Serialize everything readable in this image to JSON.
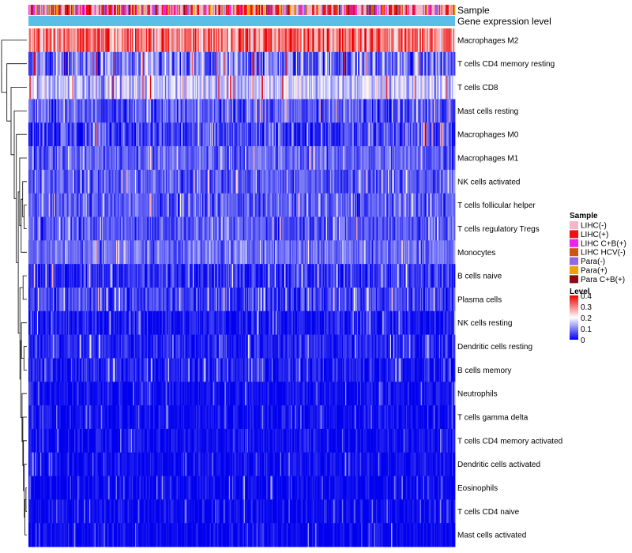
{
  "chart_data": {
    "type": "heatmap",
    "title": "",
    "annotations": [
      {
        "name": "Sample",
        "label": "Sample"
      },
      {
        "name": "Gene expression level",
        "label": "Gene expression level",
        "color": "#5bbee6"
      }
    ],
    "rows": [
      {
        "name": "Macrophages M2",
        "mean": 0.3,
        "spread": 0.09
      },
      {
        "name": "T cells CD4 memory resting",
        "mean": 0.09,
        "spread": 0.09
      },
      {
        "name": "T cells CD8",
        "mean": 0.16,
        "spread": 0.07
      },
      {
        "name": "Mast cells resting",
        "mean": 0.07,
        "spread": 0.06
      },
      {
        "name": "Macrophages M0",
        "mean": 0.05,
        "spread": 0.07
      },
      {
        "name": "Macrophages M1",
        "mean": 0.08,
        "spread": 0.05
      },
      {
        "name": "NK cells activated",
        "mean": 0.07,
        "spread": 0.05
      },
      {
        "name": "T cells follicular helper",
        "mean": 0.07,
        "spread": 0.05
      },
      {
        "name": "T cells regulatory  Tregs",
        "mean": 0.07,
        "spread": 0.05
      },
      {
        "name": "Monocytes",
        "mean": 0.09,
        "spread": 0.05
      },
      {
        "name": "B cells naive",
        "mean": 0.04,
        "spread": 0.05
      },
      {
        "name": "Plasma cells",
        "mean": 0.05,
        "spread": 0.05
      },
      {
        "name": "NK cells resting",
        "mean": 0.02,
        "spread": 0.04
      },
      {
        "name": "Dendritic cells resting",
        "mean": 0.03,
        "spread": 0.04
      },
      {
        "name": "B cells memory",
        "mean": 0.02,
        "spread": 0.04
      },
      {
        "name": "Neutrophils",
        "mean": 0.01,
        "spread": 0.03
      },
      {
        "name": "T cells gamma delta",
        "mean": 0.01,
        "spread": 0.03
      },
      {
        "name": "T cells CD4 memory activated",
        "mean": 0.01,
        "spread": 0.03
      },
      {
        "name": "Dendritic cells activated",
        "mean": 0.01,
        "spread": 0.03
      },
      {
        "name": "Eosinophils",
        "mean": 0.005,
        "spread": 0.03
      },
      {
        "name": "T cells CD4 naive",
        "mean": 0.005,
        "spread": 0.03
      },
      {
        "name": "Mast cells activated",
        "mean": 0.005,
        "spread": 0.03
      }
    ],
    "n_samples": 400,
    "sample_groups": [
      {
        "label": "LIHC(-)",
        "color": "#f6b6c6",
        "weight": 0.36
      },
      {
        "label": "LIHC(+)",
        "color": "#ee1111",
        "weight": 0.28
      },
      {
        "label": "LIHC C+B(+)",
        "color": "#ee22ee",
        "weight": 0.08
      },
      {
        "label": "LIHC HCV(-)",
        "color": "#cc5511",
        "weight": 0.06
      },
      {
        "label": "Para(-)",
        "color": "#9466e0",
        "weight": 0.08
      },
      {
        "label": "Para(+)",
        "color": "#f0a000",
        "weight": 0.08
      },
      {
        "label": "Para C+B(+)",
        "color": "#8a0a1a",
        "weight": 0.06
      }
    ],
    "legend_sample": {
      "title": "Sample",
      "entries": [
        "LIHC(-)",
        "LIHC(+)",
        "LIHC C+B(+)",
        "LIHC HCV(-)",
        "Para(-)",
        "Para(+)",
        "Para C+B(+)"
      ]
    },
    "legend_level": {
      "title": "Level",
      "ticks": [
        "0.4",
        "0.3",
        "0.2",
        "0.1",
        "0"
      ],
      "tick_values": [
        0.4,
        0.3,
        0.2,
        0.1,
        0
      ],
      "colors": [
        "#0000ee",
        "#ffffff",
        "#ee0000"
      ],
      "range": [
        0,
        0.4
      ]
    },
    "dendrogram": {
      "leaf_order": [
        "Macrophages M2",
        "T cells CD4 memory resting",
        "T cells CD8",
        "Mast cells resting",
        "Macrophages M0",
        "Macrophages M1",
        "NK cells activated",
        "T cells follicular helper",
        "T cells regulatory  Tregs",
        "Monocytes",
        "B cells naive",
        "Plasma cells",
        "NK cells resting",
        "Dendritic cells resting",
        "B cells memory",
        "Neutrophils",
        "T cells gamma delta",
        "T cells CD4 memory activated",
        "Dendritic cells activated",
        "Eosinophils",
        "T cells CD4 naive",
        "Mast cells activated"
      ],
      "merges": [
        [
          19,
          20,
          0.4
        ],
        [
          21,
          -1,
          0.9
        ],
        [
          18,
          -2,
          1.2
        ],
        [
          17,
          -3,
          1.6
        ],
        [
          16,
          -4,
          1.9
        ],
        [
          15,
          -5,
          2.3
        ],
        [
          14,
          13,
          1.4
        ],
        [
          -7,
          12,
          2.6
        ],
        [
          -8,
          -6,
          2.9
        ],
        [
          10,
          11,
          1.8
        ],
        [
          -10,
          -9,
          3.3
        ],
        [
          7,
          8,
          1.3
        ],
        [
          6,
          -12,
          2.0
        ],
        [
          9,
          -13,
          2.7
        ],
        [
          5,
          -14,
          3.4
        ],
        [
          -15,
          -11,
          4.1
        ],
        [
          4,
          -16,
          5.0
        ],
        [
          3,
          -17,
          6.0
        ],
        [
          2,
          -18,
          7.5
        ],
        [
          1,
          -19,
          9.5
        ],
        [
          0,
          -20,
          12.0
        ]
      ]
    }
  }
}
